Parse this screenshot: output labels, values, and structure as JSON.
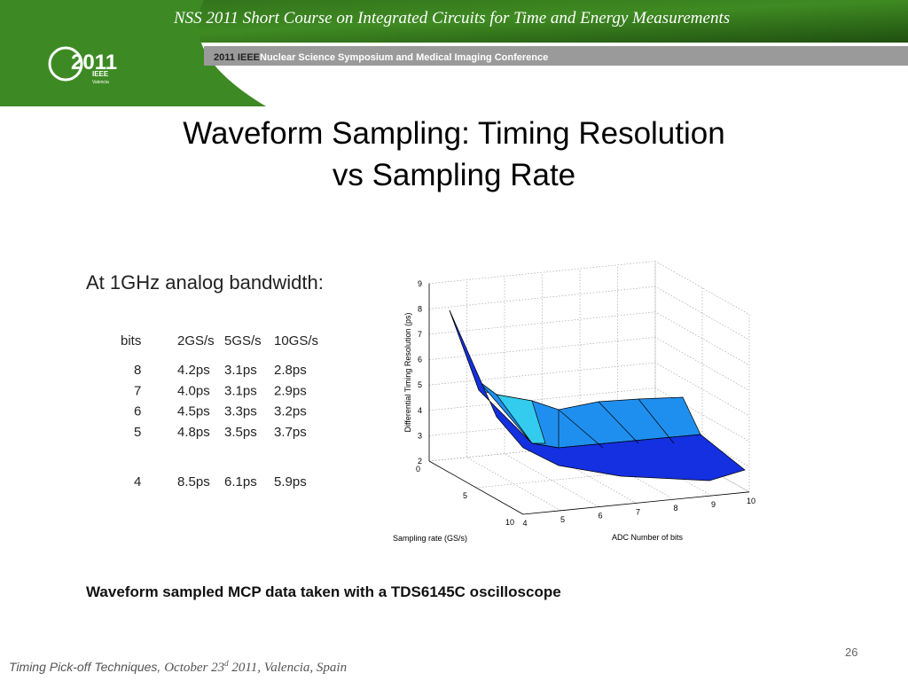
{
  "header": {
    "course": "NSS 2011 Short Course on  Integrated Circuits for Time and Energy Measurements",
    "conference_year": "2011 IEEE",
    "conference": "Nuclear Science Symposium and Medical Imaging Conference",
    "logo": "2011",
    "logo_sub": "IEEE",
    "logo_city": "Valencia"
  },
  "title": [
    "Waveform Sampling: Timing Resolution",
    "vs Sampling Rate"
  ],
  "subtitle": "At 1GHz analog bandwidth:",
  "table": {
    "header": [
      "bits",
      "2GS/s",
      "5GS/s",
      "10GS/s"
    ],
    "rows": [
      [
        "8",
        "4.2ps",
        "3.1ps",
        "2.8ps"
      ],
      [
        "7",
        "4.0ps",
        "3.1ps",
        "2.9ps"
      ],
      [
        "6",
        "4.5ps",
        "3.3ps",
        "3.2ps"
      ],
      [
        "5",
        "4.8ps",
        "3.5ps",
        "3.7ps"
      ],
      [
        "4",
        "8.5ps",
        "6.1ps",
        "5.9ps"
      ]
    ]
  },
  "plot": {
    "zlabel": "Differential Timing Resolution (ps)",
    "xlabel": "Sampling rate (GS/s)",
    "ylabel": "ADC Number of bits",
    "zticks": [
      2,
      3,
      4,
      5,
      6,
      7,
      8,
      9
    ],
    "xticks": [
      0,
      5,
      10
    ],
    "yticks": [
      4,
      5,
      6,
      7,
      8,
      9,
      10
    ]
  },
  "caption": "Waveform sampled MCP data taken with a TDS6145C oscilloscope",
  "page_number": "26",
  "footer": {
    "text": "Timing Pick-off Techniques, ",
    "date": "October 23",
    "sup": "d",
    "rest": " 2011,  Valencia, Spain"
  }
}
